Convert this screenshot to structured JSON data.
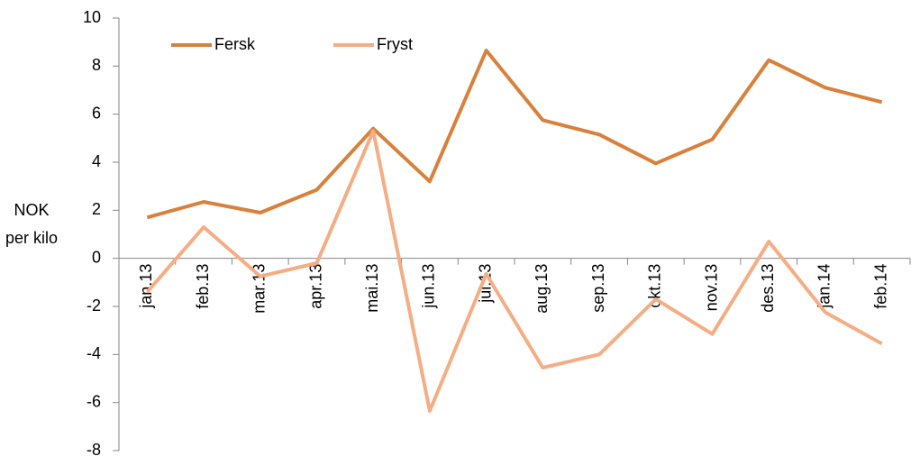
{
  "chart_data": {
    "type": "line",
    "y_label": "NOK per kilo",
    "categories": [
      "jan.13",
      "feb.13",
      "mar.13",
      "apr.13",
      "mai.13",
      "jun.13",
      "jul.13",
      "aug.13",
      "sep.13",
      "okt.13",
      "nov.13",
      "des.13",
      "jan.14",
      "feb.14"
    ],
    "series": [
      {
        "name": "Fersk",
        "color": "#d7813c",
        "values": [
          1.7,
          2.35,
          1.9,
          2.85,
          5.4,
          3.2,
          8.65,
          5.75,
          5.15,
          3.95,
          4.95,
          8.25,
          7.1,
          6.5
        ]
      },
      {
        "name": "Fryst",
        "color": "#f4ad84",
        "values": [
          -1.4,
          1.3,
          -0.75,
          -0.2,
          5.3,
          -6.35,
          -0.65,
          -4.55,
          -4.0,
          -1.7,
          -3.15,
          0.7,
          -2.25,
          -3.55
        ]
      }
    ],
    "ylim": [
      -8,
      10
    ],
    "yticks": [
      -8,
      -6,
      -4,
      -2,
      0,
      2,
      4,
      6,
      8,
      10
    ],
    "legend": "top-left",
    "grid": false
  }
}
